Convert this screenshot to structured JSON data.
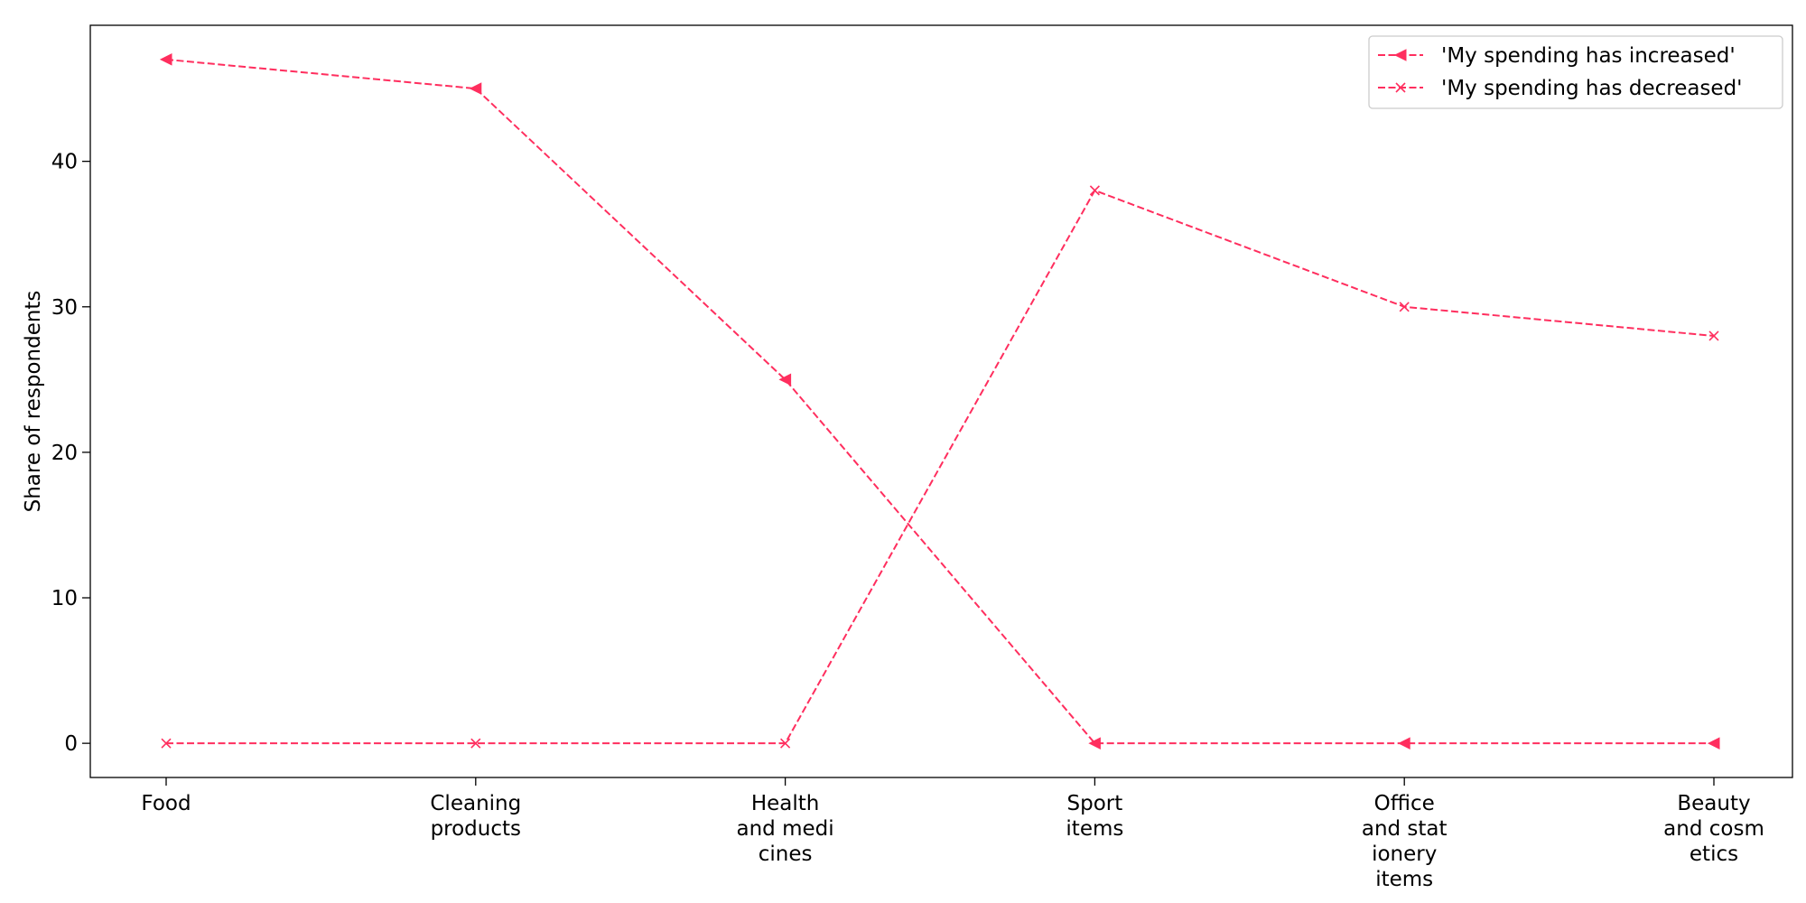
{
  "chart_data": {
    "type": "line",
    "categories": [
      [
        "Food"
      ],
      [
        "Cleaning",
        "products"
      ],
      [
        "Health",
        "and medi",
        "cines"
      ],
      [
        "Sport",
        "items"
      ],
      [
        "Office",
        "and stat",
        "ionery",
        "items"
      ],
      [
        "Beauty",
        "and cosm",
        "etics"
      ]
    ],
    "series": [
      {
        "name": "'My spending has increased'",
        "values": [
          47,
          45,
          25,
          0,
          0,
          0
        ],
        "marker": "triangle-left",
        "line_style": "dashed"
      },
      {
        "name": "'My spending has decreased'",
        "values": [
          0,
          0,
          0,
          38,
          30,
          28
        ],
        "marker": "x",
        "line_style": "dashed"
      }
    ],
    "title": "",
    "xlabel": "",
    "ylabel": "Share of respondents",
    "ylim": [
      -2.35,
      49.35
    ],
    "yticks": [
      0,
      10,
      20,
      30,
      40
    ],
    "grid": false,
    "legend_position": "top-right",
    "colors": {
      "series": "#ff2e5e",
      "axis": "#000000",
      "background": "#ffffff"
    }
  }
}
